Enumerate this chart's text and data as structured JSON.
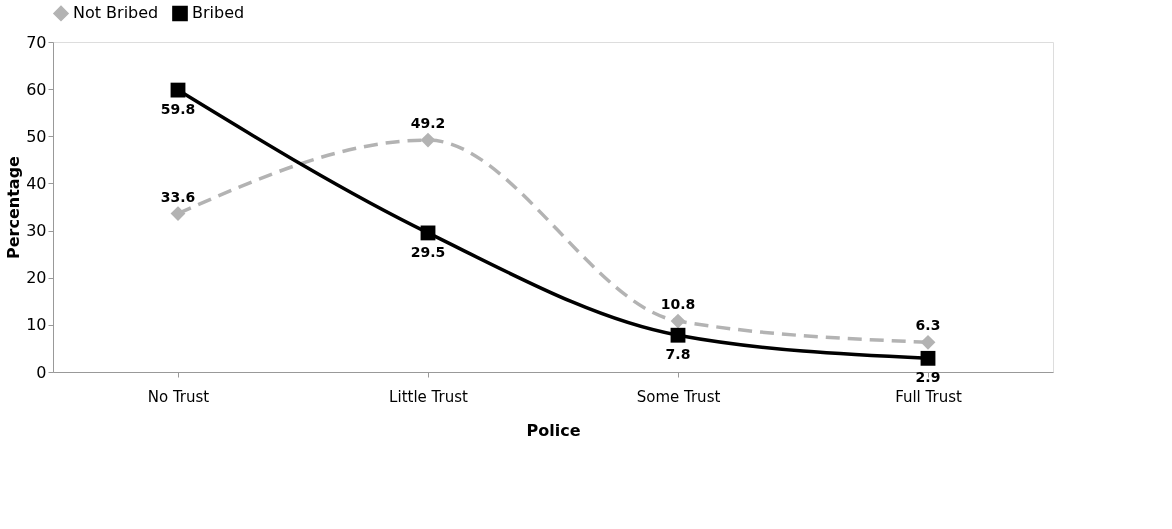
{
  "chart_data": {
    "type": "line",
    "categories": [
      "No Trust",
      "Little Trust",
      "Some Trust",
      "Full Trust"
    ],
    "series": [
      {
        "name": "Not Bribed",
        "color": "#b3b3b3",
        "values": [
          33.6,
          49.2,
          10.8,
          6.3
        ],
        "marker": "diamond",
        "line_style": "dashed"
      },
      {
        "name": "Bribed",
        "color": "#000000",
        "values": [
          59.8,
          29.5,
          7.8,
          2.9
        ],
        "marker": "square",
        "line_style": "solid"
      }
    ],
    "xlabel": "Police",
    "ylabel": "Percentage",
    "ylim": [
      0,
      70
    ],
    "yticks": [
      0,
      10,
      20,
      30,
      40,
      50,
      60,
      70
    ],
    "grid": false,
    "legend": "top",
    "data_labels": true
  }
}
